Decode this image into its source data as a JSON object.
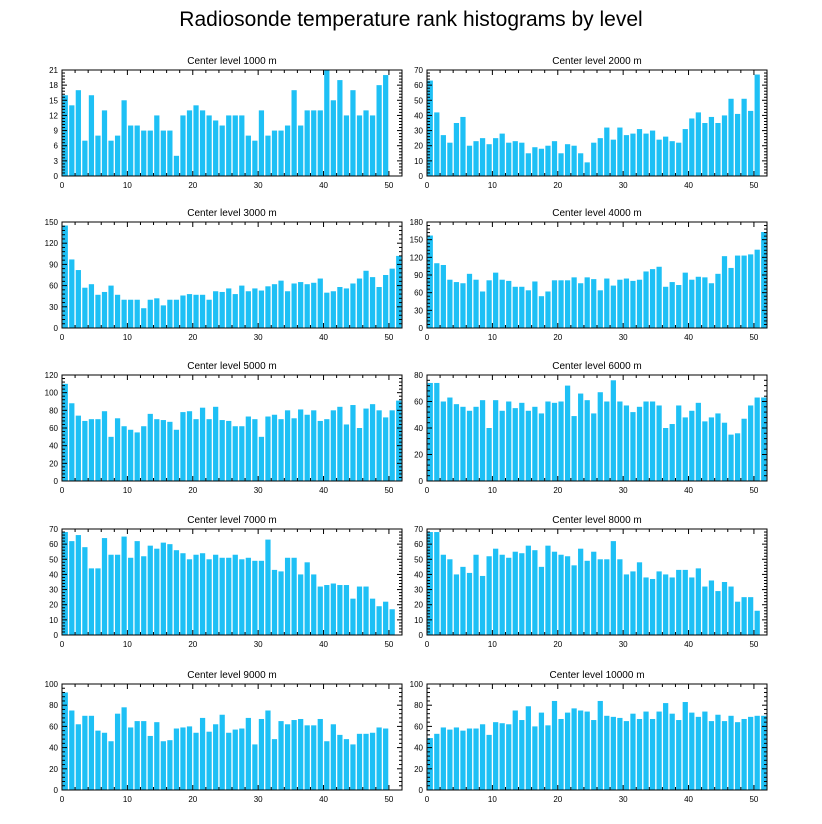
{
  "title": "Radiosonde temperature rank histograms by level",
  "colors": {
    "bar": "#1ec0f5",
    "axis": "#000000",
    "background": "#ffffff"
  },
  "chart_data": [
    {
      "type": "bar",
      "title": "Center level 1000 m",
      "x": [
        0,
        1,
        2,
        3,
        4,
        5,
        6,
        7,
        8,
        9,
        10,
        11,
        12,
        13,
        14,
        15,
        16,
        17,
        18,
        19,
        20,
        21,
        22,
        23,
        24,
        25,
        26,
        27,
        28,
        29,
        30,
        31,
        32,
        33,
        34,
        35,
        36,
        37,
        38,
        39,
        40,
        41,
        42,
        43,
        44,
        45,
        46,
        47,
        48,
        49,
        50,
        51
      ],
      "values": [
        16,
        14,
        17,
        7,
        16,
        8,
        13,
        7,
        8,
        15,
        10,
        10,
        9,
        9,
        12,
        9,
        9,
        4,
        12,
        13,
        14,
        13,
        12,
        11,
        10,
        12,
        12,
        12,
        8,
        7,
        13,
        8,
        9,
        9,
        10,
        17,
        10,
        13,
        13,
        13,
        21,
        15,
        19,
        12,
        17,
        12,
        13,
        12,
        18,
        20,
        0,
        0
      ],
      "xlim": [
        0,
        52
      ],
      "ylim": [
        0,
        21
      ],
      "yticks": [
        0,
        3,
        6,
        9,
        12,
        15,
        18,
        21
      ],
      "xticks": [
        0,
        10,
        20,
        30,
        40,
        50
      ]
    },
    {
      "type": "bar",
      "title": "Center level 2000 m",
      "x": [
        0,
        1,
        2,
        3,
        4,
        5,
        6,
        7,
        8,
        9,
        10,
        11,
        12,
        13,
        14,
        15,
        16,
        17,
        18,
        19,
        20,
        21,
        22,
        23,
        24,
        25,
        26,
        27,
        28,
        29,
        30,
        31,
        32,
        33,
        34,
        35,
        36,
        37,
        38,
        39,
        40,
        41,
        42,
        43,
        44,
        45,
        46,
        47,
        48,
        49,
        50,
        51
      ],
      "values": [
        63,
        42,
        27,
        22,
        35,
        39,
        20,
        23,
        25,
        21,
        25,
        28,
        22,
        23,
        22,
        15,
        19,
        18,
        20,
        23,
        15,
        21,
        20,
        15,
        9,
        22,
        25,
        32,
        24,
        32,
        27,
        28,
        31,
        28,
        30,
        24,
        26,
        23,
        22,
        31,
        38,
        42,
        35,
        39,
        35,
        40,
        51,
        41,
        51,
        43,
        67,
        0
      ],
      "xlim": [
        0,
        52
      ],
      "ylim": [
        0,
        70
      ],
      "yticks": [
        0,
        10,
        20,
        30,
        40,
        50,
        60,
        70
      ],
      "xticks": [
        0,
        10,
        20,
        30,
        40,
        50
      ]
    },
    {
      "type": "bar",
      "title": "Center level 3000 m",
      "x": [
        0,
        1,
        2,
        3,
        4,
        5,
        6,
        7,
        8,
        9,
        10,
        11,
        12,
        13,
        14,
        15,
        16,
        17,
        18,
        19,
        20,
        21,
        22,
        23,
        24,
        25,
        26,
        27,
        28,
        29,
        30,
        31,
        32,
        33,
        34,
        35,
        36,
        37,
        38,
        39,
        40,
        41,
        42,
        43,
        44,
        45,
        46,
        47,
        48,
        49,
        50,
        51
      ],
      "values": [
        145,
        97,
        82,
        57,
        62,
        47,
        51,
        60,
        47,
        40,
        40,
        40,
        28,
        40,
        42,
        32,
        40,
        40,
        46,
        48,
        47,
        47,
        40,
        52,
        51,
        56,
        48,
        60,
        52,
        56,
        53,
        59,
        62,
        67,
        52,
        63,
        65,
        62,
        64,
        70,
        50,
        52,
        58,
        56,
        63,
        70,
        81,
        72,
        58,
        75,
        84,
        102
      ],
      "xlim": [
        0,
        52
      ],
      "ylim": [
        0,
        150
      ],
      "yticks": [
        0,
        30,
        60,
        90,
        120,
        150
      ],
      "xticks": [
        0,
        10,
        20,
        30,
        40,
        50
      ]
    },
    {
      "type": "bar",
      "title": "Center level 4000 m",
      "x": [
        0,
        1,
        2,
        3,
        4,
        5,
        6,
        7,
        8,
        9,
        10,
        11,
        12,
        13,
        14,
        15,
        16,
        17,
        18,
        19,
        20,
        21,
        22,
        23,
        24,
        25,
        26,
        27,
        28,
        29,
        30,
        31,
        32,
        33,
        34,
        35,
        36,
        37,
        38,
        39,
        40,
        41,
        42,
        43,
        44,
        45,
        46,
        47,
        48,
        49,
        50,
        51
      ],
      "values": [
        157,
        110,
        107,
        82,
        78,
        76,
        92,
        82,
        62,
        81,
        94,
        82,
        80,
        70,
        70,
        64,
        79,
        54,
        62,
        81,
        81,
        81,
        86,
        76,
        86,
        83,
        64,
        84,
        72,
        82,
        84,
        80,
        82,
        96,
        100,
        104,
        70,
        78,
        73,
        94,
        82,
        87,
        86,
        76,
        92,
        122,
        102,
        123,
        123,
        125,
        133,
        163
      ],
      "xlim": [
        0,
        52
      ],
      "ylim": [
        0,
        180
      ],
      "yticks": [
        0,
        30,
        60,
        90,
        120,
        150,
        180
      ],
      "xticks": [
        0,
        10,
        20,
        30,
        40,
        50
      ]
    },
    {
      "type": "bar",
      "title": "Center level 5000 m",
      "x": [
        0,
        1,
        2,
        3,
        4,
        5,
        6,
        7,
        8,
        9,
        10,
        11,
        12,
        13,
        14,
        15,
        16,
        17,
        18,
        19,
        20,
        21,
        22,
        23,
        24,
        25,
        26,
        27,
        28,
        29,
        30,
        31,
        32,
        33,
        34,
        35,
        36,
        37,
        38,
        39,
        40,
        41,
        42,
        43,
        44,
        45,
        46,
        47,
        48,
        49,
        50,
        51
      ],
      "values": [
        110,
        88,
        74,
        68,
        70,
        70,
        79,
        50,
        71,
        62,
        58,
        55,
        62,
        76,
        70,
        69,
        67,
        58,
        78,
        79,
        70,
        83,
        70,
        84,
        69,
        68,
        62,
        62,
        73,
        70,
        50,
        73,
        75,
        70,
        80,
        71,
        81,
        75,
        80,
        68,
        70,
        80,
        84,
        64,
        86,
        60,
        82,
        87,
        80,
        72,
        80,
        91
      ],
      "xlim": [
        0,
        52
      ],
      "ylim": [
        0,
        120
      ],
      "yticks": [
        0,
        20,
        40,
        60,
        80,
        100,
        120
      ],
      "xticks": [
        0,
        10,
        20,
        30,
        40,
        50
      ]
    },
    {
      "type": "bar",
      "title": "Center level 6000 m",
      "x": [
        0,
        1,
        2,
        3,
        4,
        5,
        6,
        7,
        8,
        9,
        10,
        11,
        12,
        13,
        14,
        15,
        16,
        17,
        18,
        19,
        20,
        21,
        22,
        23,
        24,
        25,
        26,
        27,
        28,
        29,
        30,
        31,
        32,
        33,
        34,
        35,
        36,
        37,
        38,
        39,
        40,
        41,
        42,
        43,
        44,
        45,
        46,
        47,
        48,
        49,
        50,
        51
      ],
      "values": [
        74,
        74,
        60,
        63,
        58,
        56,
        53,
        56,
        61,
        40,
        61,
        53,
        60,
        55,
        59,
        53,
        56,
        51,
        60,
        59,
        60,
        72,
        49,
        66,
        61,
        51,
        67,
        60,
        76,
        60,
        57,
        52,
        56,
        60,
        60,
        57,
        40,
        43,
        57,
        48,
        53,
        59,
        45,
        48,
        51,
        44,
        35,
        36,
        47,
        57,
        63,
        63
      ],
      "xlim": [
        0,
        52
      ],
      "ylim": [
        0,
        80
      ],
      "yticks": [
        0,
        20,
        40,
        60,
        80
      ],
      "xticks": [
        0,
        10,
        20,
        30,
        40,
        50
      ]
    },
    {
      "type": "bar",
      "title": "Center level 7000 m",
      "x": [
        0,
        1,
        2,
        3,
        4,
        5,
        6,
        7,
        8,
        9,
        10,
        11,
        12,
        13,
        14,
        15,
        16,
        17,
        18,
        19,
        20,
        21,
        22,
        23,
        24,
        25,
        26,
        27,
        28,
        29,
        30,
        31,
        32,
        33,
        34,
        35,
        36,
        37,
        38,
        39,
        40,
        41,
        42,
        43,
        44,
        45,
        46,
        47,
        48,
        49,
        50,
        51
      ],
      "values": [
        68,
        62,
        66,
        58,
        44,
        44,
        64,
        53,
        53,
        65,
        51,
        62,
        52,
        59,
        57,
        61,
        60,
        56,
        54,
        50,
        53,
        54,
        50,
        53,
        51,
        51,
        53,
        50,
        51,
        49,
        49,
        63,
        43,
        42,
        51,
        51,
        40,
        48,
        40,
        32,
        33,
        34,
        33,
        33,
        24,
        32,
        32,
        24,
        19,
        22,
        17,
        0
      ],
      "xlim": [
        0,
        52
      ],
      "ylim": [
        0,
        70
      ],
      "yticks": [
        0,
        10,
        20,
        30,
        40,
        50,
        60,
        70
      ],
      "xticks": [
        0,
        10,
        20,
        30,
        40,
        50
      ]
    },
    {
      "type": "bar",
      "title": "Center level 8000 m",
      "x": [
        0,
        1,
        2,
        3,
        4,
        5,
        6,
        7,
        8,
        9,
        10,
        11,
        12,
        13,
        14,
        15,
        16,
        17,
        18,
        19,
        20,
        21,
        22,
        23,
        24,
        25,
        26,
        27,
        28,
        29,
        30,
        31,
        32,
        33,
        34,
        35,
        36,
        37,
        38,
        39,
        40,
        41,
        42,
        43,
        44,
        45,
        46,
        47,
        48,
        49,
        50,
        51
      ],
      "values": [
        68,
        68,
        53,
        50,
        40,
        45,
        41,
        53,
        39,
        52,
        57,
        53,
        51,
        55,
        54,
        59,
        56,
        45,
        59,
        55,
        53,
        52,
        46,
        57,
        49,
        55,
        50,
        50,
        62,
        50,
        40,
        42,
        48,
        38,
        37,
        42,
        40,
        38,
        43,
        43,
        38,
        44,
        32,
        36,
        29,
        35,
        32,
        22,
        25,
        25,
        16,
        0
      ],
      "xlim": [
        0,
        52
      ],
      "ylim": [
        0,
        70
      ],
      "yticks": [
        0,
        10,
        20,
        30,
        40,
        50,
        60,
        70
      ],
      "xticks": [
        0,
        10,
        20,
        30,
        40,
        50
      ]
    },
    {
      "type": "bar",
      "title": "Center level 9000 m",
      "x": [
        0,
        1,
        2,
        3,
        4,
        5,
        6,
        7,
        8,
        9,
        10,
        11,
        12,
        13,
        14,
        15,
        16,
        17,
        18,
        19,
        20,
        21,
        22,
        23,
        24,
        25,
        26,
        27,
        28,
        29,
        30,
        31,
        32,
        33,
        34,
        35,
        36,
        37,
        38,
        39,
        40,
        41,
        42,
        43,
        44,
        45,
        46,
        47,
        48,
        49,
        50,
        51
      ],
      "values": [
        92,
        75,
        62,
        70,
        70,
        56,
        54,
        46,
        72,
        78,
        59,
        65,
        65,
        51,
        64,
        46,
        47,
        58,
        59,
        60,
        54,
        68,
        55,
        62,
        71,
        54,
        57,
        58,
        68,
        43,
        67,
        75,
        48,
        65,
        62,
        66,
        67,
        61,
        61,
        67,
        46,
        62,
        52,
        48,
        43,
        53,
        53,
        54,
        59,
        58,
        0,
        0
      ],
      "xlim": [
        0,
        52
      ],
      "ylim": [
        0,
        100
      ],
      "yticks": [
        0,
        20,
        40,
        60,
        80,
        100
      ],
      "xticks": [
        0,
        10,
        20,
        30,
        40,
        50
      ]
    },
    {
      "type": "bar",
      "title": "Center level 10000 m",
      "x": [
        0,
        1,
        2,
        3,
        4,
        5,
        6,
        7,
        8,
        9,
        10,
        11,
        12,
        13,
        14,
        15,
        16,
        17,
        18,
        19,
        20,
        21,
        22,
        23,
        24,
        25,
        26,
        27,
        28,
        29,
        30,
        31,
        32,
        33,
        34,
        35,
        36,
        37,
        38,
        39,
        40,
        41,
        42,
        43,
        44,
        45,
        46,
        47,
        48,
        49,
        50,
        51
      ],
      "values": [
        49,
        53,
        59,
        57,
        59,
        56,
        58,
        58,
        62,
        52,
        64,
        63,
        62,
        75,
        66,
        79,
        60,
        73,
        61,
        84,
        67,
        73,
        77,
        75,
        74,
        66,
        84,
        70,
        69,
        68,
        65,
        72,
        67,
        74,
        67,
        74,
        82,
        72,
        66,
        83,
        73,
        69,
        74,
        65,
        71,
        65,
        70,
        64,
        67,
        69,
        70,
        70
      ],
      "xlim": [
        0,
        52
      ],
      "ylim": [
        0,
        100
      ],
      "yticks": [
        0,
        20,
        40,
        60,
        80,
        100
      ],
      "xticks": [
        0,
        10,
        20,
        30,
        40,
        50
      ]
    }
  ]
}
